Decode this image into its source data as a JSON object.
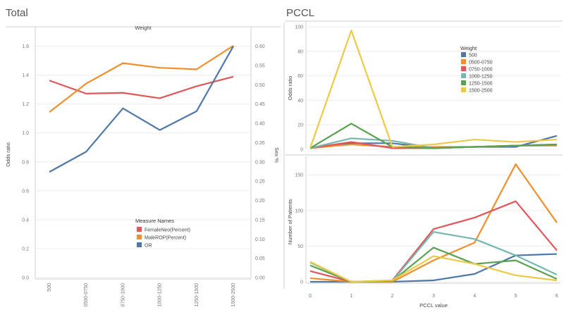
{
  "dashboard": {
    "left_title": "Total",
    "right_title": "PCCL"
  },
  "chart_data": [
    {
      "id": "total",
      "type": "line",
      "title": "Weight",
      "categories": [
        "500",
        "0500-0750",
        "0750-1000",
        "1000-1250",
        "1250-1500",
        "1500-2500"
      ],
      "ylabel": "Odds ratio",
      "ylim": [
        0,
        1.7
      ],
      "yticks": [
        "0.0",
        "0.2",
        "0.4",
        "0.6",
        "0.8",
        "1.0",
        "1.2",
        "1.4",
        "1.6"
      ],
      "y2label": "Sex %",
      "y2lim": [
        0,
        0.6375
      ],
      "y2ticks": [
        "0.00",
        "0.05",
        "0.10",
        "0.15",
        "0.20",
        "0.25",
        "0.30",
        "0.35",
        "0.40",
        "0.45",
        "0.50",
        "0.55",
        "0.60"
      ],
      "legend_title": "Measure Names",
      "legend_position": "bottom-center",
      "series": [
        {
          "name": "FemaleNeo(Percent)",
          "axis": "right",
          "color": "#e15759",
          "values": [
            0.511,
            0.477,
            0.479,
            0.465,
            0.496,
            0.521
          ]
        },
        {
          "name": "MaleROP(Percent)",
          "axis": "right",
          "color": "#f28e2b",
          "values": [
            0.429,
            0.503,
            0.556,
            0.544,
            0.54,
            0.601
          ]
        },
        {
          "name": "OR",
          "axis": "left",
          "color": "#4e79a7",
          "values": [
            0.73,
            0.87,
            1.17,
            1.02,
            1.15,
            1.6
          ]
        }
      ]
    },
    {
      "id": "pccl_or",
      "type": "line",
      "ylabel": "Odds ratio",
      "ylim": [
        0,
        100
      ],
      "yticks": [
        "0",
        "20",
        "40",
        "60",
        "80",
        "100"
      ],
      "x": [
        0,
        1,
        2,
        3,
        4,
        5,
        6
      ],
      "legend_title": "Weight",
      "legend_position": "top-right",
      "series": [
        {
          "name": "500",
          "color": "#4e79a7",
          "values": [
            1,
            5,
            5,
            1,
            2,
            2,
            11
          ]
        },
        {
          "name": "0500-0750",
          "color": "#f28e2b",
          "values": [
            1,
            4,
            2,
            2,
            2,
            3,
            3
          ]
        },
        {
          "name": "0750-1000",
          "color": "#e15759",
          "values": [
            1,
            6,
            1,
            1,
            2,
            3,
            4
          ]
        },
        {
          "name": "1000-1250",
          "color": "#76b7b2",
          "values": [
            1,
            9,
            7,
            1,
            2,
            3,
            4
          ]
        },
        {
          "name": "1250-1500",
          "color": "#59a14f",
          "values": [
            1,
            21,
            2,
            1,
            2,
            3,
            4
          ]
        },
        {
          "name": "1500-2500",
          "color": "#edc948",
          "values": [
            1,
            97,
            2,
            4,
            8,
            6,
            8
          ]
        }
      ]
    },
    {
      "id": "pccl_patients",
      "type": "line",
      "xlabel": "PCCL value",
      "ylabel": "Number of Patients",
      "ylim": [
        0,
        170
      ],
      "yticks": [
        "0",
        "50",
        "100",
        "150"
      ],
      "x": [
        0,
        1,
        2,
        3,
        4,
        5,
        6
      ],
      "xticks": [
        "0",
        "1",
        "2",
        "3",
        "4",
        "5",
        "6"
      ],
      "series": [
        {
          "name": "500",
          "color": "#4e79a7",
          "values": [
            0,
            0,
            0,
            2,
            11,
            37,
            39
          ]
        },
        {
          "name": "0500-0750",
          "color": "#f28e2b",
          "values": [
            5,
            0,
            0,
            30,
            55,
            165,
            83
          ]
        },
        {
          "name": "0750-1000",
          "color": "#e15759",
          "values": [
            15,
            0,
            2,
            74,
            90,
            113,
            44
          ]
        },
        {
          "name": "1000-1250",
          "color": "#76b7b2",
          "values": [
            27,
            0,
            1,
            70,
            60,
            37,
            10
          ]
        },
        {
          "name": "1250-1500",
          "color": "#59a14f",
          "values": [
            23,
            0,
            1,
            48,
            25,
            30,
            4
          ]
        },
        {
          "name": "1500-2500",
          "color": "#edc948",
          "values": [
            28,
            0,
            2,
            36,
            25,
            9,
            2
          ]
        }
      ]
    }
  ]
}
